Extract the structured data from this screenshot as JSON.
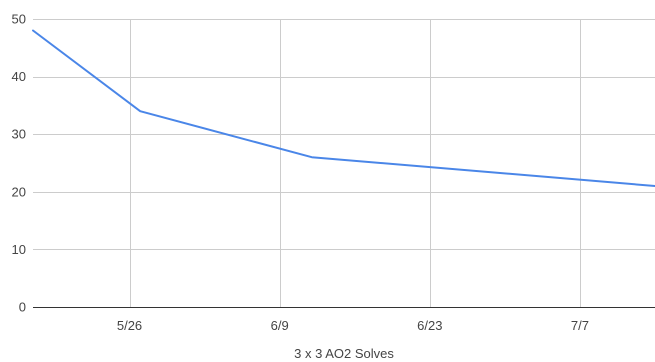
{
  "chart_data": {
    "type": "line",
    "title": "",
    "xlabel": "3 x 3 AO2 Solves",
    "ylabel": "",
    "xlim": [
      "2024-05-17",
      "2024-07-14"
    ],
    "ylim": [
      0,
      50
    ],
    "yticks": [
      0,
      10,
      20,
      30,
      40,
      50
    ],
    "xticks": [
      {
        "date": "2024-05-26",
        "label": "5/26"
      },
      {
        "date": "2024-06-09",
        "label": "6/9"
      },
      {
        "date": "2024-06-23",
        "label": "6/23"
      },
      {
        "date": "2024-07-07",
        "label": "7/7"
      }
    ],
    "grid": true,
    "legend": "none",
    "series": [
      {
        "color": "#4a86e8",
        "points": [
          {
            "x": "2024-05-17",
            "y": 48
          },
          {
            "x": "2024-05-27",
            "y": 34
          },
          {
            "x": "2024-06-12",
            "y": 26
          },
          {
            "x": "2024-07-14",
            "y": 21
          }
        ]
      }
    ],
    "colors": {
      "grid": "#cccccc",
      "baseline": "#333333"
    }
  }
}
